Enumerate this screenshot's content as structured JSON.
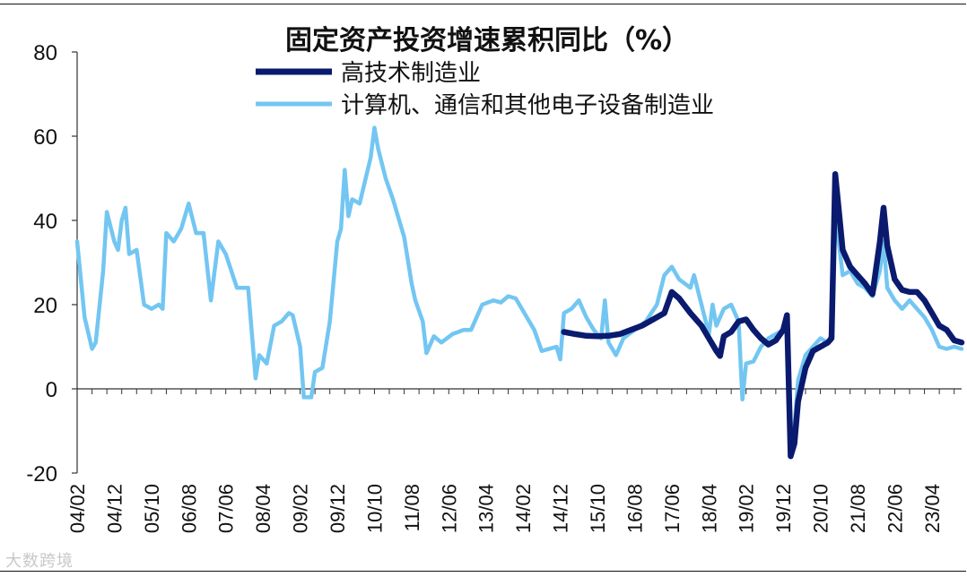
{
  "chart_data": {
    "type": "line",
    "title": "固定资产投资增速累积同比（%）",
    "xlabel": "",
    "ylabel": "",
    "ylim": [
      -20,
      80
    ],
    "yticks": [
      -20,
      0,
      20,
      40,
      60,
      80
    ],
    "x_tick_labels": [
      "04/02",
      "04/12",
      "05/10",
      "06/08",
      "07/06",
      "08/04",
      "09/02",
      "09/12",
      "10/10",
      "11/08",
      "12/06",
      "13/04",
      "14/02",
      "14/12",
      "15/10",
      "16/08",
      "17/06",
      "18/04",
      "19/02",
      "19/12",
      "20/10",
      "21/08",
      "22/06",
      "23/04"
    ],
    "x_start": "2004-02",
    "x_end": "2023-12",
    "series": [
      {
        "name": "高技术制造业",
        "color": "#0a1a6e",
        "line_width": "thick",
        "points": [
          [
            "2015-01",
            13.5
          ],
          [
            "2015-04",
            13
          ],
          [
            "2015-07",
            12.6
          ],
          [
            "2015-10",
            12.5
          ],
          [
            "2016-01",
            12.6
          ],
          [
            "2016-04",
            13
          ],
          [
            "2016-07",
            14
          ],
          [
            "2016-10",
            15
          ],
          [
            "2017-01",
            16.5
          ],
          [
            "2017-04",
            18
          ],
          [
            "2017-06",
            23
          ],
          [
            "2017-08",
            21.5
          ],
          [
            "2017-11",
            18
          ],
          [
            "2018-02",
            15
          ],
          [
            "2018-04",
            12
          ],
          [
            "2018-06",
            9
          ],
          [
            "2018-07",
            7.8
          ],
          [
            "2018-08",
            12.5
          ],
          [
            "2018-10",
            13.5
          ],
          [
            "2018-12",
            16
          ],
          [
            "2019-02",
            16.5
          ],
          [
            "2019-04",
            14
          ],
          [
            "2019-06",
            12
          ],
          [
            "2019-08",
            10.5
          ],
          [
            "2019-10",
            11.5
          ],
          [
            "2019-12",
            14
          ],
          [
            "2020-01",
            17.5
          ],
          [
            "2020-02",
            -16
          ],
          [
            "2020-03",
            -13
          ],
          [
            "2020-04",
            -3
          ],
          [
            "2020-06",
            5
          ],
          [
            "2020-08",
            9
          ],
          [
            "2020-10",
            10
          ],
          [
            "2020-12",
            11
          ],
          [
            "2021-01",
            12
          ],
          [
            "2021-02",
            51
          ],
          [
            "2021-03",
            42
          ],
          [
            "2021-04",
            33
          ],
          [
            "2021-06",
            29
          ],
          [
            "2021-08",
            27
          ],
          [
            "2021-10",
            25
          ],
          [
            "2021-12",
            22.5
          ],
          [
            "2022-02",
            35
          ],
          [
            "2022-03",
            43
          ],
          [
            "2022-04",
            34
          ],
          [
            "2022-06",
            26
          ],
          [
            "2022-08",
            23.5
          ],
          [
            "2022-10",
            23
          ],
          [
            "2022-12",
            23
          ],
          [
            "2023-02",
            21
          ],
          [
            "2023-04",
            18
          ],
          [
            "2023-06",
            15
          ],
          [
            "2023-08",
            14
          ],
          [
            "2023-10",
            11.5
          ],
          [
            "2023-12",
            11
          ]
        ]
      },
      {
        "name": "计算机、通信和其他电子设备制造业",
        "color": "#73c6f2",
        "line_width": "medium",
        "points": [
          [
            "2004-02",
            35
          ],
          [
            "2004-04",
            17
          ],
          [
            "2004-06",
            9.5
          ],
          [
            "2004-07",
            11
          ],
          [
            "2004-09",
            28
          ],
          [
            "2004-10",
            42
          ],
          [
            "2004-12",
            35
          ],
          [
            "2005-01",
            33
          ],
          [
            "2005-02",
            40
          ],
          [
            "2005-03",
            43
          ],
          [
            "2005-04",
            32
          ],
          [
            "2005-06",
            33
          ],
          [
            "2005-08",
            20
          ],
          [
            "2005-10",
            19
          ],
          [
            "2005-12",
            20
          ],
          [
            "2006-01",
            19
          ],
          [
            "2006-02",
            37
          ],
          [
            "2006-04",
            35
          ],
          [
            "2006-06",
            38
          ],
          [
            "2006-08",
            44
          ],
          [
            "2006-10",
            37
          ],
          [
            "2006-12",
            37
          ],
          [
            "2007-02",
            21
          ],
          [
            "2007-04",
            35
          ],
          [
            "2007-06",
            32
          ],
          [
            "2007-09",
            24
          ],
          [
            "2007-12",
            24
          ],
          [
            "2008-02",
            2.5
          ],
          [
            "2008-03",
            8
          ],
          [
            "2008-05",
            6
          ],
          [
            "2008-07",
            15
          ],
          [
            "2008-09",
            16
          ],
          [
            "2008-11",
            18
          ],
          [
            "2008-12",
            17.5
          ],
          [
            "2009-02",
            10
          ],
          [
            "2009-03",
            -2
          ],
          [
            "2009-05",
            -2
          ],
          [
            "2009-06",
            4
          ],
          [
            "2009-08",
            5
          ],
          [
            "2009-10",
            16
          ],
          [
            "2009-12",
            35
          ],
          [
            "2010-01",
            38
          ],
          [
            "2010-02",
            52
          ],
          [
            "2010-03",
            41
          ],
          [
            "2010-04",
            45
          ],
          [
            "2010-06",
            44
          ],
          [
            "2010-09",
            55
          ],
          [
            "2010-10",
            62
          ],
          [
            "2010-11",
            57
          ],
          [
            "2011-01",
            50
          ],
          [
            "2011-03",
            45
          ],
          [
            "2011-06",
            36
          ],
          [
            "2011-08",
            25
          ],
          [
            "2011-09",
            21
          ],
          [
            "2011-11",
            16
          ],
          [
            "2011-12",
            8.5
          ],
          [
            "2012-02",
            12.5
          ],
          [
            "2012-04",
            11
          ],
          [
            "2012-07",
            13
          ],
          [
            "2012-10",
            14
          ],
          [
            "2012-12",
            14
          ],
          [
            "2013-03",
            20
          ],
          [
            "2013-06",
            21
          ],
          [
            "2013-08",
            20.5
          ],
          [
            "2013-10",
            22
          ],
          [
            "2013-12",
            21.5
          ],
          [
            "2014-03",
            17
          ],
          [
            "2014-05",
            14
          ],
          [
            "2014-07",
            9
          ],
          [
            "2014-09",
            9.5
          ],
          [
            "2014-11",
            10
          ],
          [
            "2014-12",
            7
          ],
          [
            "2015-01",
            18
          ],
          [
            "2015-03",
            19
          ],
          [
            "2015-05",
            21
          ],
          [
            "2015-07",
            17
          ],
          [
            "2015-09",
            14
          ],
          [
            "2015-11",
            12
          ],
          [
            "2015-12",
            21
          ],
          [
            "2016-01",
            11
          ],
          [
            "2016-03",
            8
          ],
          [
            "2016-05",
            12
          ],
          [
            "2016-08",
            14
          ],
          [
            "2016-11",
            16
          ],
          [
            "2017-02",
            20
          ],
          [
            "2017-04",
            27
          ],
          [
            "2017-06",
            29
          ],
          [
            "2017-08",
            26
          ],
          [
            "2017-11",
            24
          ],
          [
            "2017-12",
            27
          ],
          [
            "2018-02",
            20
          ],
          [
            "2018-04",
            13
          ],
          [
            "2018-05",
            20
          ],
          [
            "2018-06",
            15
          ],
          [
            "2018-08",
            19
          ],
          [
            "2018-10",
            20
          ],
          [
            "2018-12",
            16
          ],
          [
            "2019-01",
            -2.5
          ],
          [
            "2019-02",
            6
          ],
          [
            "2019-04",
            6.5
          ],
          [
            "2019-06",
            10
          ],
          [
            "2019-08",
            12
          ],
          [
            "2019-10",
            13
          ],
          [
            "2019-12",
            14
          ],
          [
            "2020-01",
            15
          ],
          [
            "2020-02",
            -11
          ],
          [
            "2020-03",
            -9
          ],
          [
            "2020-04",
            2
          ],
          [
            "2020-06",
            8
          ],
          [
            "2020-08",
            10
          ],
          [
            "2020-10",
            12
          ],
          [
            "2020-12",
            11
          ],
          [
            "2021-01",
            13
          ],
          [
            "2021-02",
            42
          ],
          [
            "2021-04",
            27
          ],
          [
            "2021-06",
            28
          ],
          [
            "2021-08",
            25
          ],
          [
            "2021-10",
            24
          ],
          [
            "2021-12",
            22
          ],
          [
            "2022-02",
            28
          ],
          [
            "2022-03",
            35
          ],
          [
            "2022-04",
            24
          ],
          [
            "2022-06",
            21
          ],
          [
            "2022-08",
            19
          ],
          [
            "2022-10",
            21
          ],
          [
            "2022-12",
            19
          ],
          [
            "2023-02",
            17
          ],
          [
            "2023-04",
            14
          ],
          [
            "2023-06",
            10
          ],
          [
            "2023-08",
            9.5
          ],
          [
            "2023-10",
            10
          ],
          [
            "2023-12",
            9.5
          ]
        ]
      }
    ],
    "legend_position": "top-center",
    "grid": false
  },
  "watermark": "大数跨境"
}
